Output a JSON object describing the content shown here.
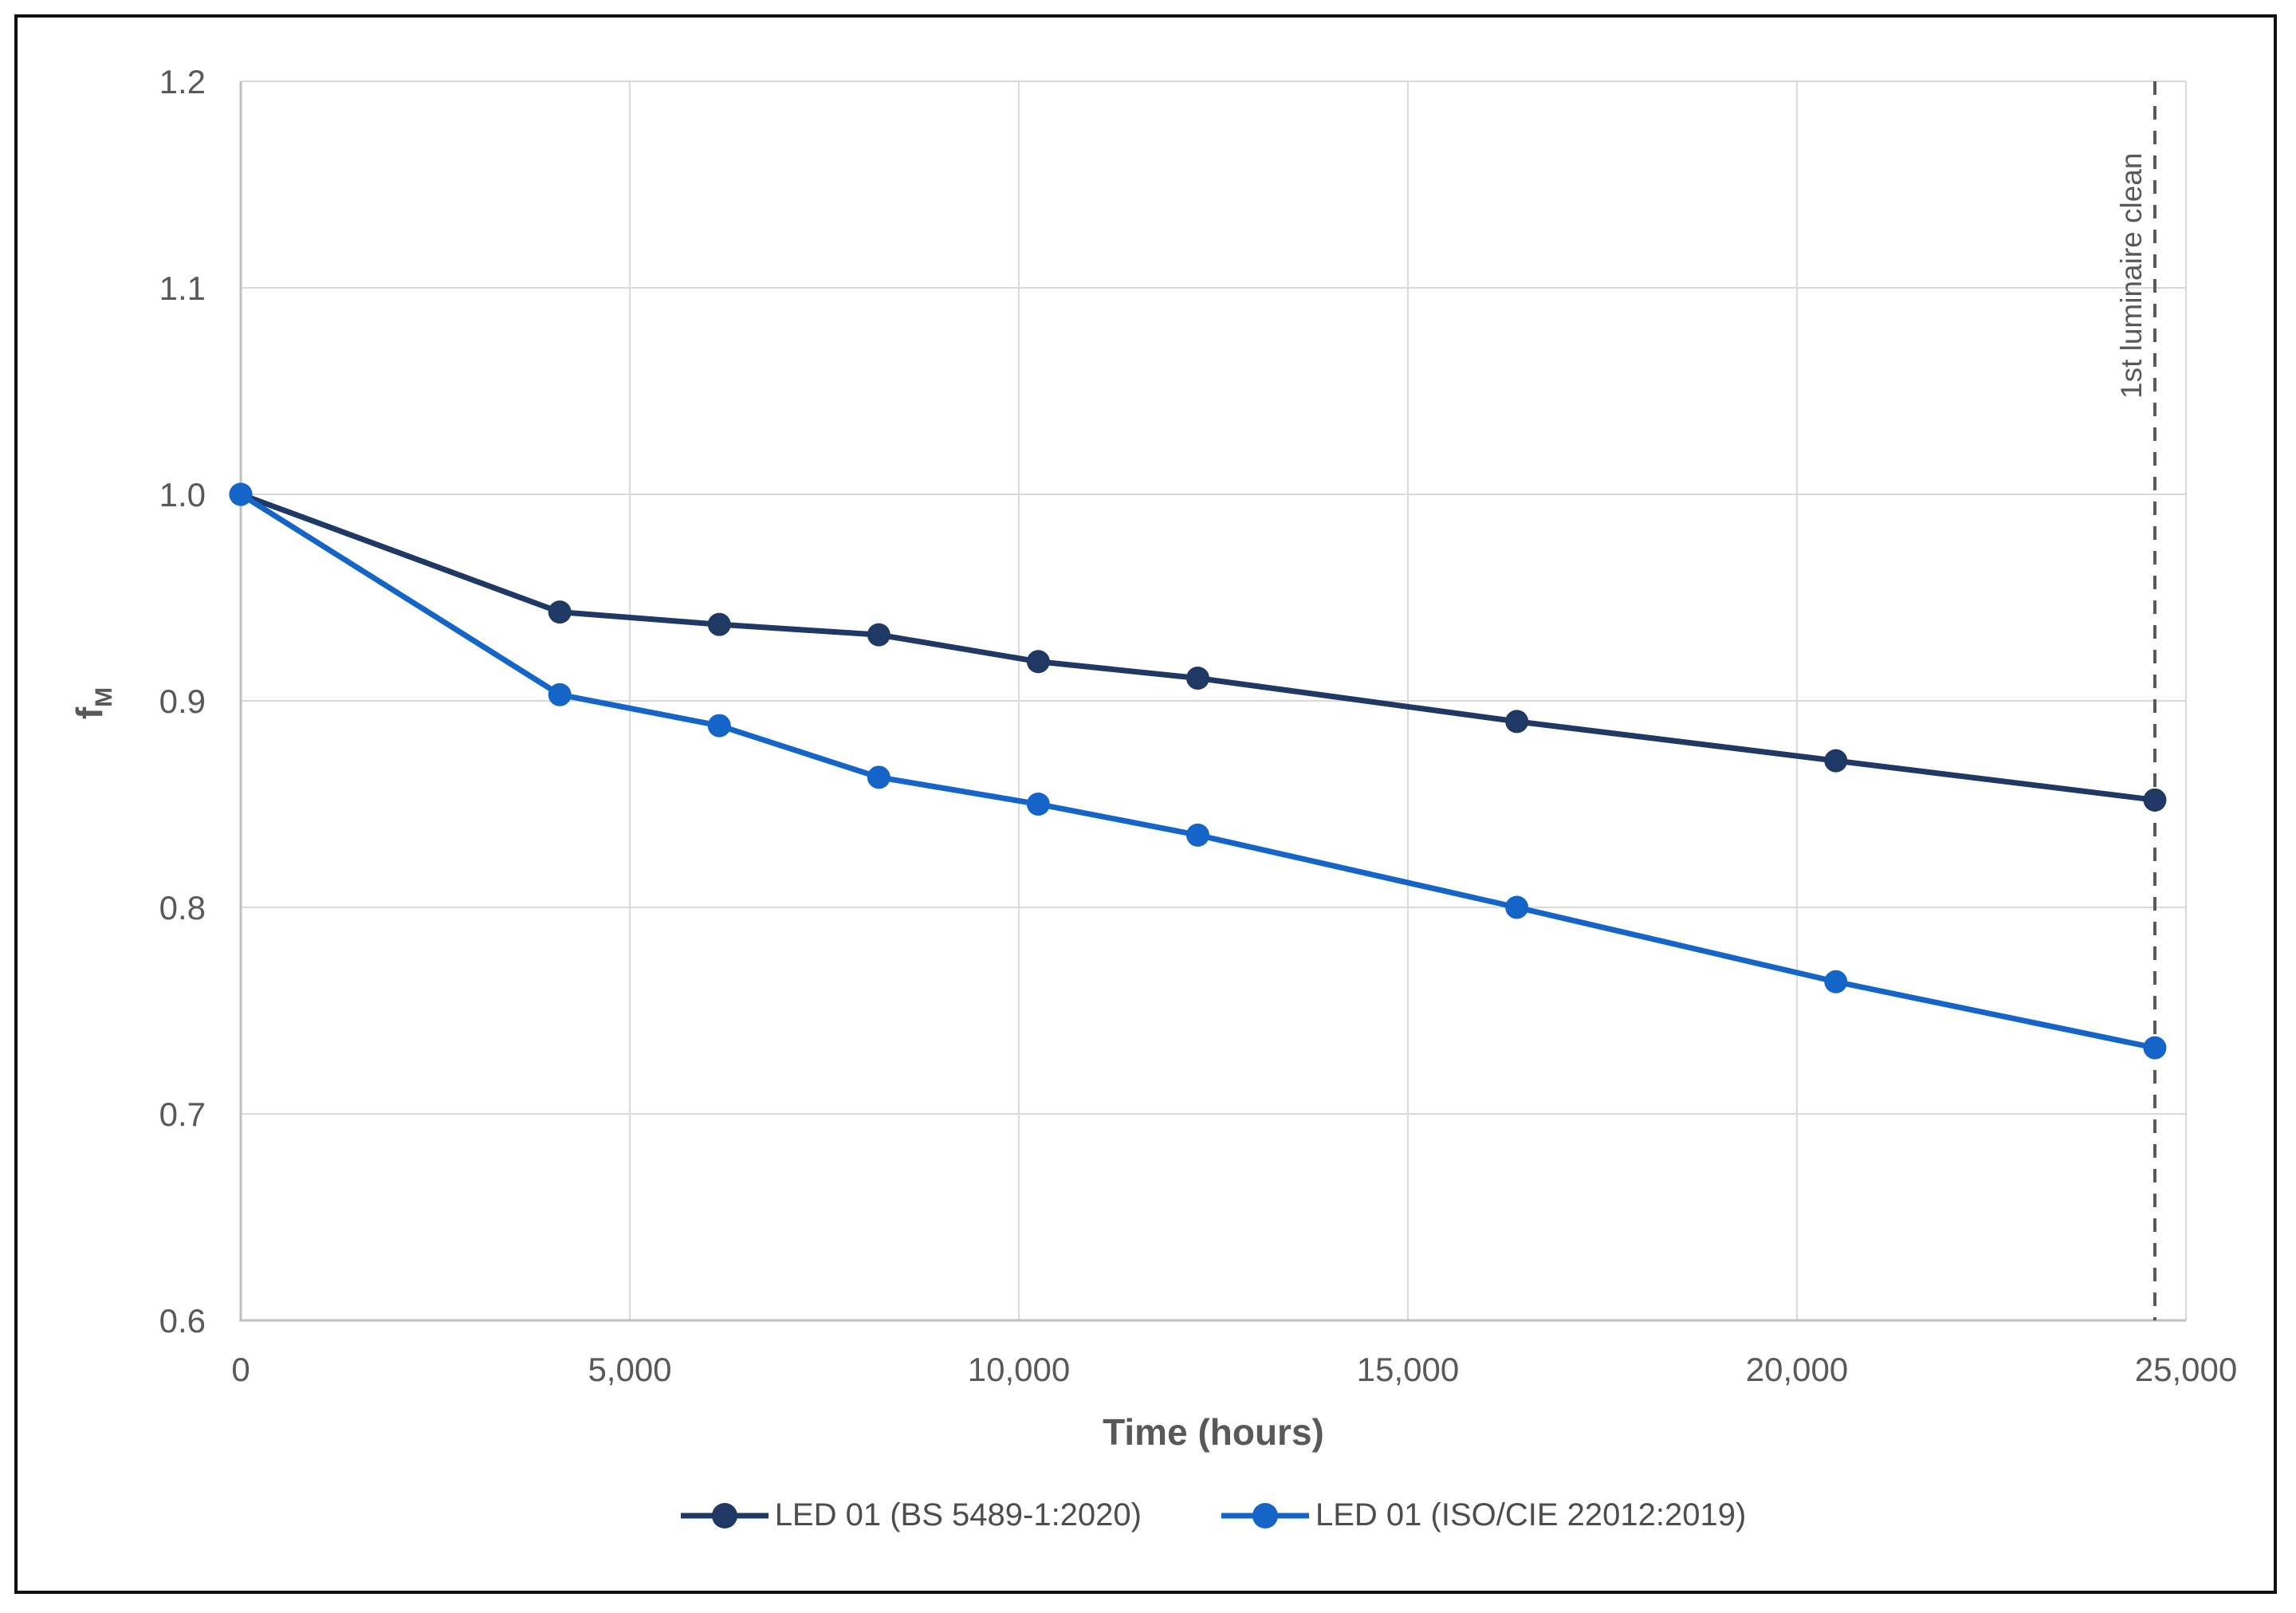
{
  "chart_data": {
    "type": "line",
    "x": [
      0,
      4100,
      6150,
      8200,
      10250,
      12300,
      16400,
      20500,
      24600
    ],
    "series": [
      {
        "name": "LED 01 (BS 5489-1:2020)",
        "color": "#1f3864",
        "values": [
          1.0,
          0.943,
          0.937,
          0.932,
          0.919,
          0.911,
          0.89,
          0.871,
          0.852
        ]
      },
      {
        "name": "LED 01 (ISO/CIE 22012:2019)",
        "color": "#1565c8",
        "values": [
          1.0,
          0.903,
          0.888,
          0.863,
          0.85,
          0.835,
          0.8,
          0.764,
          0.732
        ]
      }
    ],
    "title": "",
    "xlabel": "Time (hours)",
    "ylabel": "f",
    "ylabel_sub": "M",
    "xlim": [
      0,
      25000
    ],
    "ylim": [
      0.6,
      1.2
    ],
    "x_ticks": [
      0,
      5000,
      10000,
      15000,
      20000,
      25000
    ],
    "x_tick_labels": [
      "0",
      "5,000",
      "10,000",
      "15,000",
      "20,000",
      "25,000"
    ],
    "y_ticks": [
      0.6,
      0.7,
      0.8,
      0.9,
      1.0,
      1.1,
      1.2
    ],
    "y_tick_labels": [
      "0.6",
      "0.7",
      "0.8",
      "0.9",
      "1.0",
      "1.1",
      "1.2"
    ],
    "grid": "on",
    "legend_position": "bottom",
    "annotation": {
      "label": "1st luminaire clean",
      "x": 24600
    }
  },
  "colors": {
    "gridline": "#d9d9d9",
    "axis_line": "#bfbfbf",
    "dashed_line": "#595959",
    "tick_text": "#595959",
    "frame_border": "#111111"
  }
}
